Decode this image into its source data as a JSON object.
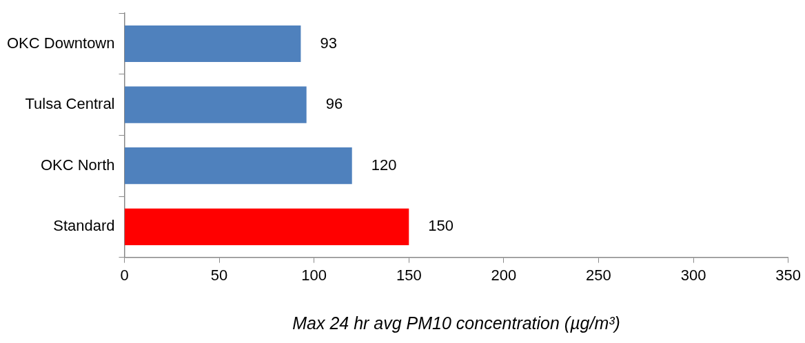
{
  "chart_data": {
    "type": "bar",
    "orientation": "horizontal",
    "categories": [
      "OKC Downtown",
      "Tulsa Central",
      "OKC North",
      "Standard"
    ],
    "values": [
      93,
      96,
      120,
      150
    ],
    "colors": [
      "#4f81bd",
      "#4f81bd",
      "#4f81bd",
      "#ff0000"
    ],
    "xlabel": "Max 24 hr avg PM10 concentration (µg/m³)",
    "xlim": [
      0,
      350
    ],
    "xticks": [
      0,
      50,
      100,
      150,
      200,
      250,
      300,
      350
    ],
    "data_labels": true,
    "grid": false,
    "legend": false
  }
}
